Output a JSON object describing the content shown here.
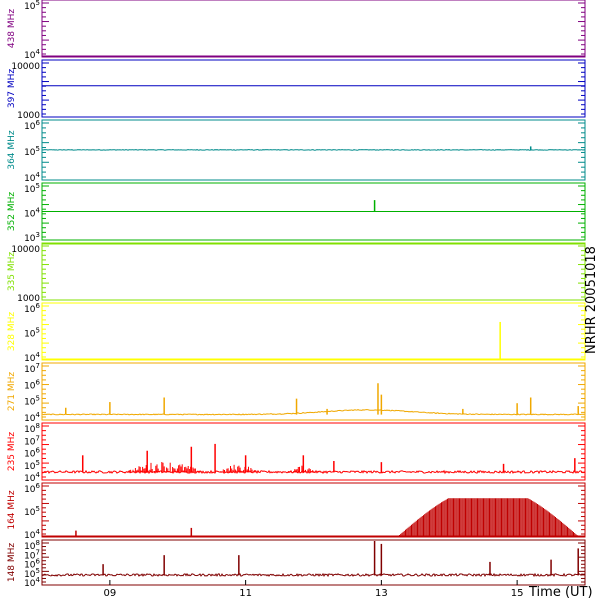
{
  "side_label": "NRHR 20051018",
  "chart_data": {
    "type": "line",
    "x_axis": {
      "label": "Time (UT)",
      "range_hours": [
        8.0,
        16.0
      ],
      "ticks": [
        9,
        11,
        13,
        15
      ],
      "tick_labels": [
        "09",
        "11",
        "13",
        "15"
      ]
    },
    "grid": false,
    "panels": [
      {
        "name": "438 MHz",
        "color": "#800080",
        "ylog": true,
        "tick_labels": [
          {
            "base": "10",
            "exp": "4"
          },
          {
            "base": "10",
            "exp": "5"
          }
        ],
        "baseline_label_index": 0,
        "baseline_fraction": 0.0,
        "noise": 0,
        "hump": 0,
        "spikes": [],
        "bursts": []
      },
      {
        "name": "397 MHz",
        "color": "#0000c0",
        "ylog": true,
        "tick_labels": [
          {
            "base": "1000",
            "exp": ""
          },
          {
            "base": "10000",
            "exp": ""
          }
        ],
        "baseline_fraction": 0.55,
        "noise": 0,
        "hump": 0,
        "spikes": [],
        "bursts": []
      },
      {
        "name": "364 MHz",
        "color": "#008b8b",
        "ylog": true,
        "tick_labels": [
          {
            "base": "10",
            "exp": "4"
          },
          {
            "base": "10",
            "exp": "5"
          },
          {
            "base": "10",
            "exp": "6"
          }
        ],
        "baseline_fraction": 0.5,
        "noise": 0.01,
        "hump": 0,
        "spikes": [
          [
            15.2,
            0.06
          ]
        ],
        "bursts": []
      },
      {
        "name": "352 MHz",
        "color": "#00b000",
        "ylog": true,
        "tick_labels": [
          {
            "base": "10",
            "exp": "3"
          },
          {
            "base": "10",
            "exp": "4"
          },
          {
            "base": "10",
            "exp": "5"
          }
        ],
        "baseline_fraction": 0.5,
        "noise": 0,
        "hump": 0,
        "spikes": [
          [
            12.9,
            0.2
          ]
        ],
        "bursts": []
      },
      {
        "name": "335 MHz",
        "color": "#80e000",
        "ylog": true,
        "tick_labels": [
          {
            "base": "1000",
            "exp": ""
          },
          {
            "base": "10000",
            "exp": ""
          }
        ],
        "baseline_fraction": 1.0,
        "noise": 0,
        "hump": 0,
        "spikes": [],
        "bursts": []
      },
      {
        "name": "328 MHz",
        "color": "#ffff00",
        "ylog": true,
        "tick_labels": [
          {
            "base": "10",
            "exp": "4"
          },
          {
            "base": "10",
            "exp": "5"
          },
          {
            "base": "10",
            "exp": "6"
          }
        ],
        "baseline_fraction": 0.0,
        "noise": 0,
        "hump": 0,
        "spikes": [
          [
            14.75,
            0.65
          ]
        ],
        "bursts": []
      },
      {
        "name": "271 MHz",
        "color": "#f0a800",
        "ylog": true,
        "tick_labels": [
          {
            "base": "10",
            "exp": "4"
          },
          {
            "base": "10",
            "exp": "5"
          },
          {
            "base": "10",
            "exp": "6"
          },
          {
            "base": "10",
            "exp": "7"
          }
        ],
        "baseline_fraction": 0.08,
        "noise": 0.015,
        "hump": 0.08,
        "spikes": [
          [
            8.35,
            0.12
          ],
          [
            9.0,
            0.22
          ],
          [
            9.8,
            0.3
          ],
          [
            11.75,
            0.28
          ],
          [
            12.2,
            0.1
          ],
          [
            12.95,
            0.55
          ],
          [
            13.0,
            0.35
          ],
          [
            14.2,
            0.1
          ],
          [
            15.0,
            0.2
          ],
          [
            15.2,
            0.3
          ],
          [
            15.9,
            0.15
          ]
        ],
        "bursts": []
      },
      {
        "name": "235 MHz",
        "color": "#ff0000",
        "ylog": true,
        "tick_labels": [
          {
            "base": "10",
            "exp": "4"
          },
          {
            "base": "10",
            "exp": "5"
          },
          {
            "base": "10",
            "exp": "6"
          },
          {
            "base": "10",
            "exp": "7"
          },
          {
            "base": "10",
            "exp": "8"
          }
        ],
        "baseline_fraction": 0.12,
        "noise": 0.04,
        "hump": 0,
        "spikes": [
          [
            8.6,
            0.3
          ],
          [
            9.55,
            0.38
          ],
          [
            10.2,
            0.45
          ],
          [
            10.55,
            0.5
          ],
          [
            11.0,
            0.3
          ],
          [
            11.85,
            0.3
          ],
          [
            12.3,
            0.2
          ],
          [
            13.0,
            0.18
          ],
          [
            14.8,
            0.15
          ],
          [
            15.85,
            0.25
          ]
        ],
        "bursts": [
          [
            9.2,
            10.4,
            0.2
          ],
          [
            10.6,
            11.2,
            0.15
          ],
          [
            11.6,
            12.1,
            0.12
          ]
        ]
      },
      {
        "name": "164 MHz",
        "color": "#c00000",
        "ylog": true,
        "tick_labels": [
          {
            "base": "10",
            "exp": "4"
          },
          {
            "base": "10",
            "exp": "5"
          },
          {
            "base": "10",
            "exp": "6"
          }
        ],
        "baseline_fraction": 0.0,
        "noise": 0,
        "hump": 0,
        "spikes": [
          [
            8.5,
            0.1
          ],
          [
            10.2,
            0.15
          ]
        ],
        "bursts": [
          [
            13.25,
            15.9,
            0.7
          ]
        ]
      },
      {
        "name": "148 MHz",
        "color": "#800000",
        "ylog": true,
        "tick_labels": [
          {
            "base": "10",
            "exp": "4"
          },
          {
            "base": "10",
            "exp": "5"
          },
          {
            "base": "10",
            "exp": "6"
          },
          {
            "base": "10",
            "exp": "7"
          },
          {
            "base": "10",
            "exp": "8"
          }
        ],
        "baseline_fraction": 0.2,
        "noise": 0.05,
        "hump": 0,
        "spikes": [
          [
            8.9,
            0.25
          ],
          [
            9.8,
            0.45
          ],
          [
            10.9,
            0.45
          ],
          [
            12.9,
            0.85
          ],
          [
            13.0,
            0.7
          ],
          [
            14.6,
            0.3
          ],
          [
            15.5,
            0.35
          ],
          [
            15.9,
            0.6
          ]
        ],
        "bursts": []
      }
    ]
  }
}
